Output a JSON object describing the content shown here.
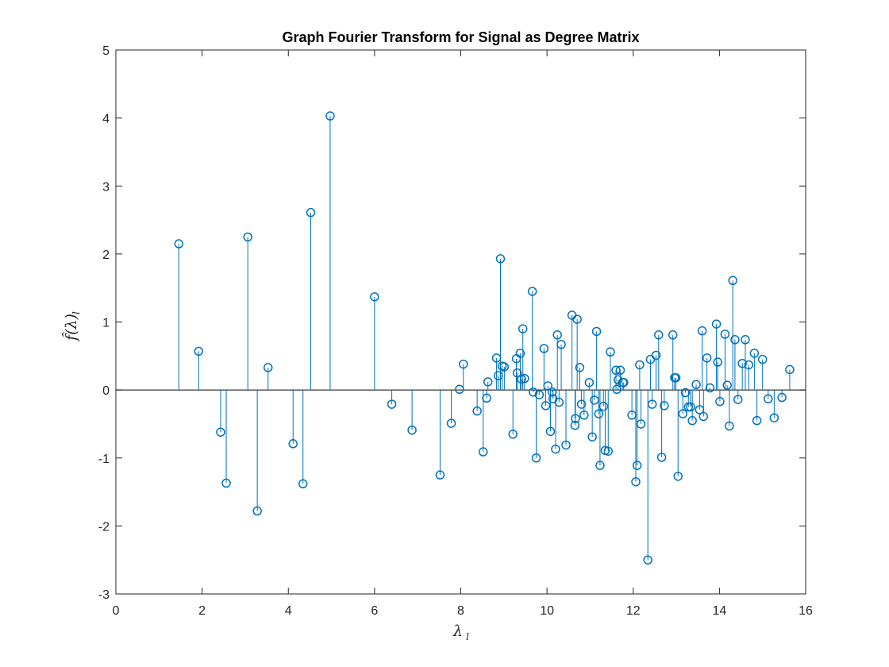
{
  "chart_data": {
    "type": "stem",
    "title": "Graph Fourier Transform for Signal as Degree Matrix",
    "xlabel": "λ",
    "xlabel_subscript": "l",
    "ylabel": "f̂(λ)",
    "ylabel_subscript": "l",
    "xlim": [
      0,
      16
    ],
    "ylim": [
      -3,
      5
    ],
    "xticks": [
      0,
      2,
      4,
      6,
      8,
      10,
      12,
      14,
      16
    ],
    "yticks": [
      -3,
      -2,
      -1,
      0,
      1,
      2,
      3,
      4,
      5
    ],
    "grid": false,
    "legend": "none",
    "color": "#0072bd",
    "baseline_color": "#000000",
    "x": [
      1.46,
      1.92,
      2.43,
      2.56,
      3.06,
      3.28,
      3.53,
      4.11,
      4.34,
      4.52,
      4.97,
      6.0,
      6.4,
      6.87,
      7.52,
      7.78,
      7.97,
      8.06,
      8.38,
      8.52,
      8.6,
      8.63,
      8.83,
      8.87,
      8.92,
      8.96,
      9.01,
      9.21,
      9.29,
      9.31,
      9.38,
      9.41,
      9.44,
      9.48,
      9.66,
      9.68,
      9.75,
      9.82,
      9.93,
      9.97,
      10.02,
      10.08,
      10.12,
      10.14,
      10.2,
      10.24,
      10.28,
      10.33,
      10.44,
      10.58,
      10.65,
      10.66,
      10.7,
      10.76,
      10.8,
      10.86,
      10.98,
      11.05,
      11.1,
      11.15,
      11.2,
      11.23,
      11.31,
      11.35,
      11.42,
      11.47,
      11.6,
      11.62,
      11.65,
      11.7,
      11.76,
      11.78,
      11.97,
      12.06,
      12.09,
      12.15,
      12.18,
      12.34,
      12.4,
      12.44,
      12.53,
      12.59,
      12.66,
      12.72,
      12.92,
      12.96,
      12.99,
      13.04,
      13.15,
      13.21,
      13.28,
      13.33,
      13.37,
      13.46,
      13.54,
      13.6,
      13.63,
      13.71,
      13.78,
      13.93,
      13.96,
      14.01,
      14.13,
      14.18,
      14.23,
      14.31,
      14.36,
      14.43,
      14.53,
      14.6,
      14.68,
      14.81,
      14.87,
      15.0,
      15.13,
      15.27,
      15.45,
      15.63
    ],
    "values": [
      2.15,
      0.57,
      -0.62,
      -1.37,
      2.25,
      -1.78,
      0.33,
      -0.79,
      -1.38,
      2.61,
      4.03,
      1.37,
      -0.21,
      -0.59,
      -1.25,
      -0.49,
      0.01,
      0.38,
      -0.31,
      -0.91,
      -0.12,
      0.12,
      0.47,
      0.21,
      1.93,
      0.35,
      0.34,
      -0.65,
      0.46,
      0.25,
      0.54,
      0.16,
      0.9,
      0.17,
      1.45,
      -0.03,
      -1.0,
      -0.07,
      0.61,
      -0.23,
      0.06,
      -0.61,
      -0.03,
      -0.13,
      -0.87,
      0.81,
      -0.18,
      0.67,
      -0.81,
      1.1,
      -0.52,
      -0.42,
      1.04,
      0.33,
      -0.21,
      -0.37,
      0.11,
      -0.69,
      -0.15,
      0.86,
      -0.35,
      -1.11,
      -0.24,
      -0.89,
      -0.9,
      0.56,
      0.29,
      0.01,
      0.15,
      0.29,
      0.11,
      0.11,
      -0.37,
      -1.35,
      -1.11,
      0.37,
      -0.5,
      -2.5,
      0.45,
      -0.21,
      0.51,
      0.81,
      -0.99,
      -0.23,
      0.81,
      0.18,
      0.18,
      -1.27,
      -0.35,
      -0.04,
      -0.25,
      -0.25,
      -0.45,
      0.08,
      -0.29,
      0.87,
      -0.39,
      0.47,
      0.03,
      0.97,
      0.41,
      -0.17,
      0.82,
      0.07,
      -0.53,
      1.61,
      0.74,
      -0.14,
      0.39,
      0.74,
      0.37,
      0.54,
      -0.45,
      0.45,
      -0.13,
      -0.41,
      -0.11,
      0.3
    ]
  }
}
